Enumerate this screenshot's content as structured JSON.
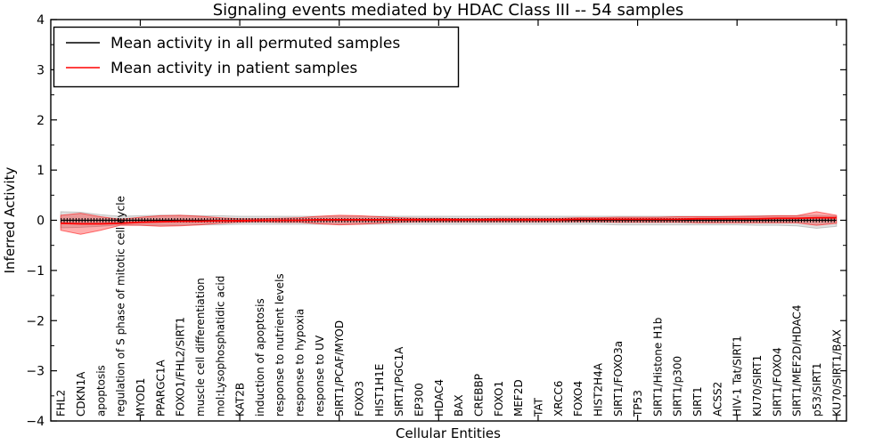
{
  "figure": {
    "title": "Signaling events mediated by HDAC Class III -- 54 samples",
    "xlabel": "Cellular Entities",
    "ylabel": "Inferred Activity"
  },
  "chart_data": {
    "type": "line",
    "title": "Signaling events mediated by HDAC Class III -- 54 samples",
    "xlabel": "Cellular Entities",
    "ylabel": "Inferred Activity",
    "ylim": [
      -4,
      4
    ],
    "yticks": [
      4,
      3,
      2,
      1,
      0,
      -1,
      -2,
      -3,
      -4
    ],
    "ytick_labels": [
      "4",
      "3",
      "2",
      "1",
      "0",
      "−1",
      "−2",
      "−3",
      "−4"
    ],
    "y_minor_ticks": [
      3.5,
      2.5,
      1.5,
      0.5,
      -0.5,
      -1.5,
      -2.5,
      -3.5
    ],
    "x_major_ticks": [
      5,
      10,
      15,
      20,
      25,
      30,
      35,
      40
    ],
    "grid": false,
    "legend_position": "upper left",
    "categories": [
      "FHL2",
      "CDKN1A",
      "apoptosis",
      "regulation of S phase of mitotic cell cycle",
      "MYOD1",
      "PPARGC1A",
      "FOXO1/FHL2/SIRT1",
      "muscle cell differentiation",
      "mol:Lysophosphatidic acid",
      "KAT2B",
      "induction of apoptosis",
      "response to nutrient levels",
      "response to hypoxia",
      "response to UV",
      "SIRT1/PCAF/MYOD",
      "FOXO3",
      "HIST1H1E",
      "SIRT1/PGC1A",
      "EP300",
      "HDAC4",
      "BAX",
      "CREBBP",
      "FOXO1",
      "MEF2D",
      "TAT",
      "XRCC6",
      "FOXO4",
      "HIST2H4A",
      "SIRT1/FOXO3a",
      "TP53",
      "SIRT1/Histone H1b",
      "SIRT1/p300",
      "SIRT1",
      "ACSS2",
      "HIV-1 Tat/SIRT1",
      "KU70/SIRT1",
      "SIRT1/FOXO4",
      "SIRT1/MEF2D/HDAC4",
      "p53/SIRT1",
      "KU70/SIRT1/BAX"
    ],
    "series": [
      {
        "name": "Mean activity in all permuted samples",
        "color": "#000000",
        "band_color": "#999999",
        "band_alpha": 0.3,
        "values": [
          0,
          0,
          0,
          0,
          0,
          0,
          0,
          0,
          0,
          0,
          0,
          0,
          0,
          0,
          0,
          0,
          0,
          0,
          0,
          0,
          0,
          0,
          0,
          0,
          0,
          0,
          0,
          0,
          0,
          0,
          0,
          0,
          0,
          0,
          0,
          0,
          0,
          0,
          0,
          0
        ],
        "band_upper": [
          0.17,
          0.16,
          0.11,
          0.08,
          0.09,
          0.1,
          0.1,
          0.09,
          0.09,
          0.08,
          0.08,
          0.08,
          0.08,
          0.08,
          0.08,
          0.08,
          0.08,
          0.08,
          0.08,
          0.08,
          0.08,
          0.08,
          0.08,
          0.08,
          0.08,
          0.08,
          0.08,
          0.08,
          0.08,
          0.08,
          0.08,
          0.08,
          0.08,
          0.08,
          0.08,
          0.09,
          0.09,
          0.09,
          0.1,
          0.08
        ],
        "band_lower": [
          -0.15,
          -0.14,
          -0.12,
          -0.09,
          -0.1,
          -0.1,
          -0.1,
          -0.09,
          -0.09,
          -0.08,
          -0.08,
          -0.08,
          -0.08,
          -0.08,
          -0.08,
          -0.08,
          -0.08,
          -0.08,
          -0.08,
          -0.08,
          -0.08,
          -0.08,
          -0.08,
          -0.08,
          -0.08,
          -0.08,
          -0.08,
          -0.08,
          -0.09,
          -0.09,
          -0.09,
          -0.09,
          -0.09,
          -0.09,
          -0.09,
          -0.1,
          -0.1,
          -0.11,
          -0.16,
          -0.12
        ]
      },
      {
        "name": "Mean activity in patient samples",
        "color": "#ff0000",
        "band_color": "#ff0000",
        "band_alpha": 0.32,
        "values": [
          -0.06,
          -0.07,
          -0.07,
          -0.06,
          -0.04,
          -0.03,
          -0.02,
          -0.02,
          -0.01,
          -0.01,
          0.0,
          0.0,
          0.0,
          0.01,
          0.01,
          0.01,
          0.01,
          0.01,
          0.01,
          0.01,
          0.01,
          0.01,
          0.01,
          0.01,
          0.01,
          0.01,
          0.02,
          0.02,
          0.02,
          0.02,
          0.02,
          0.02,
          0.03,
          0.03,
          0.03,
          0.03,
          0.04,
          0.04,
          0.05,
          0.05
        ],
        "band_upper": [
          0.1,
          0.14,
          0.07,
          0.02,
          0.06,
          0.09,
          0.1,
          0.08,
          0.05,
          0.03,
          0.03,
          0.04,
          0.05,
          0.08,
          0.1,
          0.09,
          0.07,
          0.05,
          0.04,
          0.04,
          0.03,
          0.03,
          0.04,
          0.04,
          0.04,
          0.04,
          0.05,
          0.05,
          0.06,
          0.06,
          0.06,
          0.07,
          0.07,
          0.07,
          0.08,
          0.08,
          0.09,
          0.09,
          0.17,
          0.1
        ],
        "band_lower": [
          -0.2,
          -0.28,
          -0.2,
          -0.1,
          -0.1,
          -0.12,
          -0.11,
          -0.09,
          -0.06,
          -0.04,
          -0.03,
          -0.04,
          -0.04,
          -0.07,
          -0.09,
          -0.08,
          -0.06,
          -0.04,
          -0.03,
          -0.03,
          -0.03,
          -0.03,
          -0.03,
          -0.03,
          -0.03,
          -0.03,
          -0.03,
          -0.03,
          -0.04,
          -0.04,
          -0.04,
          -0.04,
          -0.05,
          -0.05,
          -0.05,
          -0.05,
          -0.05,
          -0.05,
          -0.1,
          -0.06
        ]
      }
    ]
  }
}
